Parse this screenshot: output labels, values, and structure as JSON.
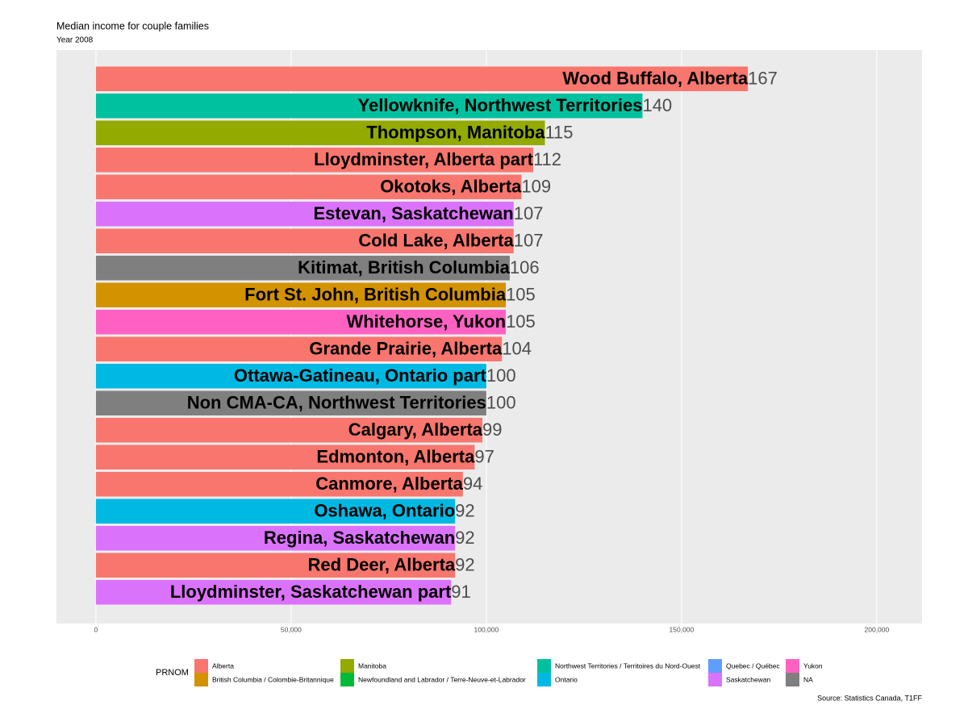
{
  "chart_data": {
    "type": "barh",
    "title": "Median income for couple families",
    "subtitle": "Year 2008",
    "caption": "Source: Statistics Canada, T1FF",
    "categories": [
      "Wood Buffalo, Alberta",
      "Yellowknife, Northwest Territories",
      "Thompson, Manitoba",
      "Lloydminster, Alberta part",
      "Okotoks, Alberta",
      "Estevan, Saskatchewan",
      "Cold Lake, Alberta",
      "Kitimat, British Columbia",
      "Fort St. John, British Columbia",
      "Whitehorse, Yukon",
      "Grande Prairie, Alberta",
      "Ottawa-Gatineau, Ontario part",
      "Non CMA-CA, Northwest Territories",
      "Calgary, Alberta",
      "Edmonton, Alberta",
      "Canmore, Alberta",
      "Oshawa, Ontario",
      "Regina, Saskatchewan",
      "Red Deer, Alberta",
      "Lloydminster, Saskatchewan part"
    ],
    "values": [
      167000,
      140000,
      115000,
      112000,
      109000,
      107000,
      107000,
      106000,
      105000,
      105000,
      104000,
      100000,
      100000,
      99000,
      97000,
      94000,
      92000,
      92000,
      92000,
      91000
    ],
    "value_labels": [
      "167",
      "140",
      "115",
      "112",
      "109",
      "107",
      "107",
      "106",
      "105",
      "105",
      "104",
      "100",
      "100",
      "99",
      "97",
      "94",
      "92",
      "92",
      "92",
      "91"
    ],
    "colors": [
      "#F8766D",
      "#00C19F",
      "#93AA00",
      "#F8766D",
      "#F8766D",
      "#DB72FB",
      "#F8766D",
      "#7F7F7F",
      "#D39200",
      "#FF61C3",
      "#F8766D",
      "#00B9E3",
      "#7F7F7F",
      "#F8766D",
      "#F8766D",
      "#F8766D",
      "#00B9E3",
      "#DB72FB",
      "#F8766D",
      "#DB72FB"
    ],
    "xlim": [
      -10100,
      211600
    ],
    "xticks": [
      0,
      {
        "value": 50000,
        "label": "50,000"
      },
      {
        "value": 100000,
        "label": "100,000"
      },
      {
        "value": 150000,
        "label": "150,000"
      },
      {
        "value": 200000,
        "label": "200,000"
      }
    ],
    "grid": true,
    "legend": {
      "title": "PRNOM",
      "position": "bottom",
      "items": [
        {
          "name": "Alberta",
          "color": "#F8766D"
        },
        {
          "name": "British Columbia / Colombie-Britannique",
          "color": "#D39200"
        },
        {
          "name": "Manitoba",
          "color": "#93AA00"
        },
        {
          "name": "Newfoundland and Labrador / Terre-Neuve-et-Labrador",
          "color": "#00BA38"
        },
        {
          "name": "Northwest Territories / Territoires du Nord-Ouest",
          "color": "#00C19F"
        },
        {
          "name": "Ontario",
          "color": "#00B9E3"
        },
        {
          "name": "Quebec / Québec",
          "color": "#619CFF"
        },
        {
          "name": "Saskatchewan",
          "color": "#DB72FB"
        },
        {
          "name": "Yukon",
          "color": "#FF61C3"
        },
        {
          "name": "NA",
          "color": "#7F7F7F"
        }
      ]
    }
  }
}
